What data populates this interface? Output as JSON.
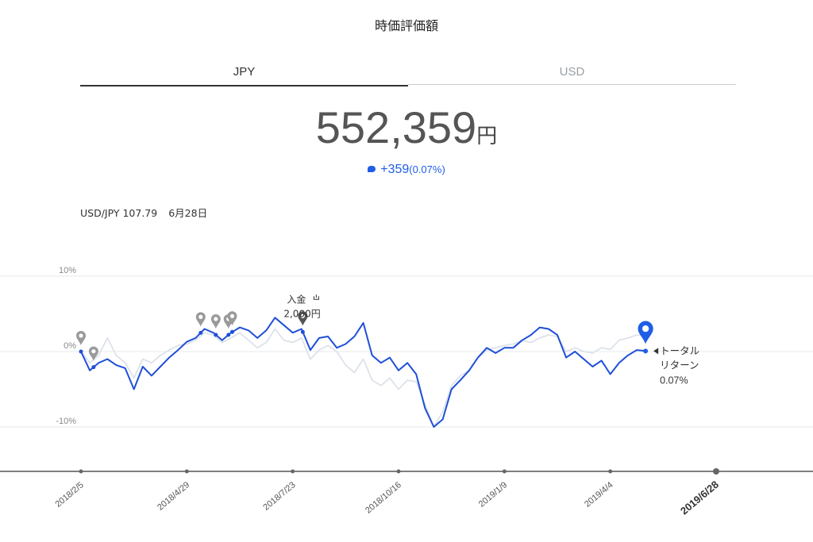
{
  "title": "時価評価額",
  "tabs": [
    {
      "label": "JPY",
      "active": true
    },
    {
      "label": "USD",
      "active": false
    }
  ],
  "valuation": {
    "amount": "552,359",
    "unit": "円",
    "change": "+359",
    "change_pct": "(0.07%)"
  },
  "fx": {
    "pair": "USD/JPY 107.79",
    "date": "6月28日"
  },
  "colors": {
    "portfolio": "#1f4fd8",
    "benchmark": "#dde2ea",
    "accent": "#1f5ee6",
    "marker": "#9a9a9a"
  },
  "chart_data": {
    "type": "line",
    "y_unit": "%",
    "ylim": [
      -15,
      15
    ],
    "yticks": [
      {
        "value": 10,
        "label": "10%"
      },
      {
        "value": 0,
        "label": "0%"
      },
      {
        "value": -10,
        "label": "-10%"
      }
    ],
    "xticks": [
      "2018/2/5",
      "2018/4/29",
      "2018/7/23",
      "2018/10/16",
      "2019/1/9",
      "2019/4/4",
      "2019/6/28"
    ],
    "x_range": [
      "2018/2/5",
      "2019/6/28"
    ],
    "series": [
      {
        "role": "portfolio",
        "x": [
          0,
          7,
          14,
          21,
          28,
          35,
          42,
          49,
          56,
          63,
          70,
          77,
          84,
          91,
          98,
          105,
          112,
          119,
          126,
          133,
          140,
          147,
          154,
          161,
          168,
          175,
          182,
          189,
          196,
          203,
          210,
          217,
          224,
          231,
          238,
          245,
          252,
          259,
          266,
          273,
          280,
          287,
          294,
          301,
          308,
          315,
          322,
          329,
          336,
          343,
          350,
          357,
          364,
          371,
          378,
          385,
          392,
          399,
          406,
          413,
          420,
          427,
          434,
          441,
          448,
          455,
          462,
          469,
          476,
          483,
          490,
          497,
          504
        ],
        "y": [
          0,
          -2.5,
          -1.5,
          -1,
          -1.8,
          -2.2,
          -5,
          -2,
          -3.2,
          -2,
          -0.8,
          0.2,
          1.3,
          1.8,
          3,
          2.5,
          1.5,
          2.5,
          3.2,
          2.8,
          1.8,
          2.8,
          4.5,
          3.5,
          2.5,
          3,
          0.2,
          1.8,
          2,
          0.5,
          1,
          2,
          3.8,
          -0.5,
          -1.5,
          -0.8,
          -2.5,
          -1.5,
          -3,
          -7.5,
          -10,
          -9,
          -5,
          -3.8,
          -2.5,
          -0.8,
          0.5,
          -0.2,
          0.5,
          0.5,
          1.5,
          2.2,
          3.2,
          3,
          2.2,
          -0.8,
          0,
          -1,
          -2,
          -1.2,
          -3,
          -1.5,
          -0.5,
          0.2,
          0.07,
          null,
          null,
          null,
          null,
          null,
          null,
          null,
          null
        ]
      },
      {
        "role": "benchmark",
        "x": [
          0,
          7,
          14,
          21,
          28,
          35,
          42,
          49,
          56,
          63,
          70,
          77,
          84,
          91,
          98,
          105,
          112,
          119,
          126,
          133,
          140,
          147,
          154,
          161,
          168,
          175,
          182,
          189,
          196,
          203,
          210,
          217,
          224,
          231,
          238,
          245,
          252,
          259,
          266,
          273,
          280,
          287,
          294,
          301,
          308,
          315,
          322,
          329,
          336,
          343,
          350,
          357,
          364,
          371,
          378,
          385,
          392,
          399,
          406,
          413,
          420,
          427,
          434,
          441,
          448,
          455,
          462,
          469,
          476,
          483,
          490,
          497,
          504
        ],
        "y": [
          0,
          -1.5,
          -0.5,
          1.8,
          -0.5,
          -1.5,
          -3.5,
          -1,
          -1.5,
          -0.5,
          0.2,
          0.8,
          1,
          1.5,
          2.5,
          2.2,
          1.2,
          1.8,
          2.5,
          1.5,
          0.5,
          1.2,
          3,
          1.5,
          1.2,
          1.8,
          -1,
          0.2,
          0.8,
          0,
          -1.8,
          -2.8,
          -1,
          -3.8,
          -4.5,
          -3.5,
          -5,
          -3.8,
          -4,
          -7,
          -10,
          -8,
          -4.5,
          -3.2,
          -2.5,
          -0.8,
          0.2,
          0.5,
          0.8,
          1,
          1.5,
          1.2,
          1.8,
          2.2,
          2,
          0,
          0.5,
          0,
          -0.2,
          0.5,
          0.3,
          1.5,
          1.8,
          2.2,
          2.2,
          null,
          null,
          null,
          null,
          null,
          null,
          null,
          null
        ]
      }
    ],
    "annotations": [
      {
        "type": "deposit",
        "label": "入金",
        "amount": "2,000円",
        "x": 176
      },
      {
        "type": "total_return",
        "label": "トータル",
        "label2": "リターン",
        "value": "0.07%",
        "x": 448
      }
    ],
    "markers_x": [
      0,
      10,
      95,
      107,
      117,
      120,
      176
    ]
  }
}
